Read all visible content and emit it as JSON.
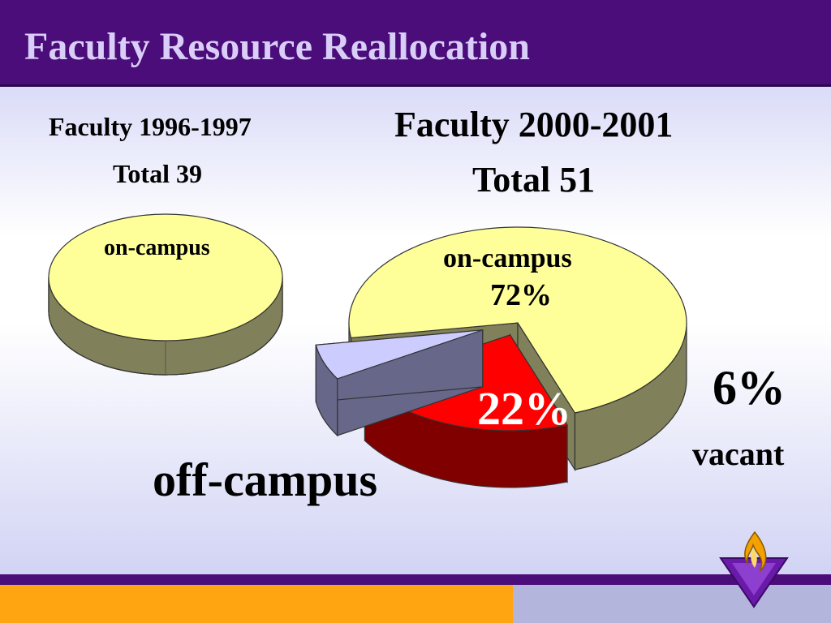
{
  "slide": {
    "title": "Faculty Resource Reallocation"
  },
  "colors": {
    "header": "#4b0d7a",
    "title_text": "#d9cef7",
    "on_campus": "#ffff99",
    "on_campus_side": "#80805a",
    "off_campus": "#ff0000",
    "off_campus_side": "#800000",
    "vacant": "#ccccff",
    "vacant_side": "#67678a",
    "footer_left": "#ffa511",
    "footer_right": "#b3b5dd"
  },
  "logo": {
    "icon": "flame-shield-icon"
  },
  "chart_data": [
    {
      "type": "pie",
      "title": "Faculty 1996-1997",
      "subtitle": "Total 39",
      "slices": [
        {
          "label": "on-campus",
          "value": 100,
          "value_label": ""
        }
      ]
    },
    {
      "type": "pie",
      "title": "Faculty 2000-2001",
      "subtitle": "Total 51",
      "slices": [
        {
          "label": "on-campus",
          "value": 72,
          "value_label": "72%"
        },
        {
          "label": "off-campus",
          "value": 22,
          "value_label": "22%"
        },
        {
          "label": "vacant",
          "value": 6,
          "value_label": "6%"
        }
      ]
    }
  ]
}
